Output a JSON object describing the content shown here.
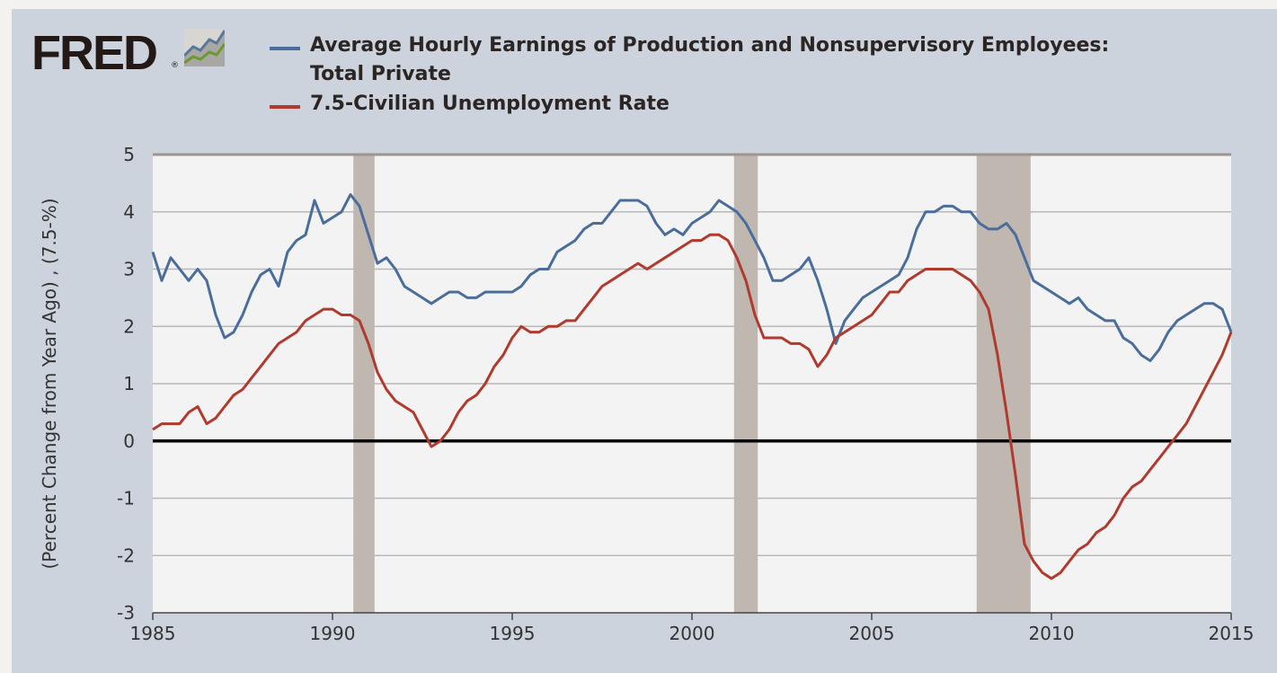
{
  "logo": {
    "text": "FRED",
    "reg": "®"
  },
  "colors": {
    "earnings": "#4a6d9c",
    "unemployment": "#b03a2e",
    "recession": "#bfb7b0",
    "grid": "#b8b8b8",
    "plot_bg": "#f3f3f3"
  },
  "chart_data": {
    "type": "line",
    "ylabel": "(Percent Change from Year Ago) , (7.5-%)",
    "xlim": [
      1985,
      2015
    ],
    "ylim": [
      -3,
      5
    ],
    "x_ticks": [
      "1985",
      "1990",
      "1995",
      "2000",
      "2005",
      "2010",
      "2015"
    ],
    "y_ticks": [
      "5",
      "4",
      "3",
      "2",
      "1",
      "0",
      "-1",
      "-2",
      "-3"
    ],
    "grid": true,
    "legend_position": "top",
    "recessions": [
      [
        1990.58,
        1991.17
      ],
      [
        2001.17,
        2001.83
      ],
      [
        2007.92,
        2009.42
      ]
    ],
    "x_start": 1985,
    "x_step": 0.25,
    "series": [
      {
        "name": "Average Hourly Earnings of Production and Nonsupervisory Employees:",
        "name_line2": "Total Private",
        "color": "#4a6d9c",
        "values": [
          3.3,
          2.8,
          3.2,
          3.0,
          2.8,
          3.0,
          2.8,
          2.2,
          1.8,
          1.9,
          2.2,
          2.6,
          2.9,
          3.0,
          2.7,
          3.3,
          3.5,
          3.6,
          4.2,
          3.8,
          3.9,
          4.0,
          4.3,
          4.1,
          3.6,
          3.1,
          3.2,
          3.0,
          2.7,
          2.6,
          2.5,
          2.4,
          2.5,
          2.6,
          2.6,
          2.5,
          2.5,
          2.6,
          2.6,
          2.6,
          2.6,
          2.7,
          2.9,
          3.0,
          3.0,
          3.3,
          3.4,
          3.5,
          3.7,
          3.8,
          3.8,
          4.0,
          4.2,
          4.2,
          4.2,
          4.1,
          3.8,
          3.6,
          3.7,
          3.6,
          3.8,
          3.9,
          4.0,
          4.2,
          4.1,
          4.0,
          3.8,
          3.5,
          3.2,
          2.8,
          2.8,
          2.9,
          3.0,
          3.2,
          2.8,
          2.3,
          1.7,
          2.1,
          2.3,
          2.5,
          2.6,
          2.7,
          2.8,
          2.9,
          3.2,
          3.7,
          4.0,
          4.0,
          4.1,
          4.1,
          4.0,
          4.0,
          3.8,
          3.7,
          3.7,
          3.8,
          3.6,
          3.2,
          2.8,
          2.7,
          2.6,
          2.5,
          2.4,
          2.5,
          2.3,
          2.2,
          2.1,
          2.1,
          1.8,
          1.7,
          1.5,
          1.4,
          1.6,
          1.9,
          2.1,
          2.2,
          2.3,
          2.4,
          2.4,
          2.3,
          1.9
        ]
      },
      {
        "name": "7.5-Civilian Unemployment Rate",
        "color": "#b03a2e",
        "values": [
          0.2,
          0.3,
          0.3,
          0.3,
          0.5,
          0.6,
          0.3,
          0.4,
          0.6,
          0.8,
          0.9,
          1.1,
          1.3,
          1.5,
          1.7,
          1.8,
          1.9,
          2.1,
          2.2,
          2.3,
          2.3,
          2.2,
          2.2,
          2.1,
          1.7,
          1.2,
          0.9,
          0.7,
          0.6,
          0.5,
          0.2,
          -0.1,
          0.0,
          0.2,
          0.5,
          0.7,
          0.8,
          1.0,
          1.3,
          1.5,
          1.8,
          2.0,
          1.9,
          1.9,
          2.0,
          2.0,
          2.1,
          2.1,
          2.3,
          2.5,
          2.7,
          2.8,
          2.9,
          3.0,
          3.1,
          3.0,
          3.1,
          3.2,
          3.3,
          3.4,
          3.5,
          3.5,
          3.6,
          3.6,
          3.5,
          3.2,
          2.8,
          2.2,
          1.8,
          1.8,
          1.8,
          1.7,
          1.7,
          1.6,
          1.3,
          1.5,
          1.8,
          1.9,
          2.0,
          2.1,
          2.2,
          2.4,
          2.6,
          2.6,
          2.8,
          2.9,
          3.0,
          3.0,
          3.0,
          3.0,
          2.9,
          2.8,
          2.6,
          2.3,
          1.5,
          0.5,
          -0.6,
          -1.8,
          -2.1,
          -2.3,
          -2.4,
          -2.3,
          -2.1,
          -1.9,
          -1.8,
          -1.6,
          -1.5,
          -1.3,
          -1.0,
          -0.8,
          -0.7,
          -0.5,
          -0.3,
          -0.1,
          0.1,
          0.3,
          0.6,
          0.9,
          1.2,
          1.5,
          1.9
        ]
      }
    ]
  }
}
